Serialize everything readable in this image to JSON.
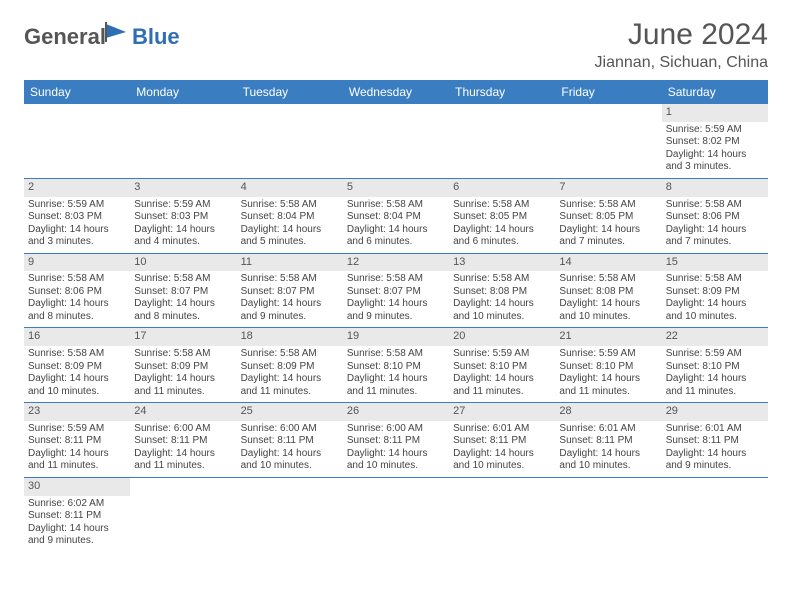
{
  "logo": {
    "text1": "General",
    "text2": "Blue"
  },
  "title": {
    "month": "June 2024",
    "location": "Jiannan, Sichuan, China"
  },
  "weekdays": [
    "Sunday",
    "Monday",
    "Tuesday",
    "Wednesday",
    "Thursday",
    "Friday",
    "Saturday"
  ],
  "colors": {
    "header_bg": "#3a7ec1",
    "header_text": "#ffffff",
    "border": "#3a7ec1",
    "daynum_bg": "#e9e9e9",
    "text": "#444444",
    "title_text": "#555555",
    "logo_gray": "#555555",
    "logo_blue": "#2f6eb5"
  },
  "days": {
    "1": {
      "sunrise": "5:59 AM",
      "sunset": "8:02 PM",
      "daylight": "14 hours and 3 minutes."
    },
    "2": {
      "sunrise": "5:59 AM",
      "sunset": "8:03 PM",
      "daylight": "14 hours and 3 minutes."
    },
    "3": {
      "sunrise": "5:59 AM",
      "sunset": "8:03 PM",
      "daylight": "14 hours and 4 minutes."
    },
    "4": {
      "sunrise": "5:58 AM",
      "sunset": "8:04 PM",
      "daylight": "14 hours and 5 minutes."
    },
    "5": {
      "sunrise": "5:58 AM",
      "sunset": "8:04 PM",
      "daylight": "14 hours and 6 minutes."
    },
    "6": {
      "sunrise": "5:58 AM",
      "sunset": "8:05 PM",
      "daylight": "14 hours and 6 minutes."
    },
    "7": {
      "sunrise": "5:58 AM",
      "sunset": "8:05 PM",
      "daylight": "14 hours and 7 minutes."
    },
    "8": {
      "sunrise": "5:58 AM",
      "sunset": "8:06 PM",
      "daylight": "14 hours and 7 minutes."
    },
    "9": {
      "sunrise": "5:58 AM",
      "sunset": "8:06 PM",
      "daylight": "14 hours and 8 minutes."
    },
    "10": {
      "sunrise": "5:58 AM",
      "sunset": "8:07 PM",
      "daylight": "14 hours and 8 minutes."
    },
    "11": {
      "sunrise": "5:58 AM",
      "sunset": "8:07 PM",
      "daylight": "14 hours and 9 minutes."
    },
    "12": {
      "sunrise": "5:58 AM",
      "sunset": "8:07 PM",
      "daylight": "14 hours and 9 minutes."
    },
    "13": {
      "sunrise": "5:58 AM",
      "sunset": "8:08 PM",
      "daylight": "14 hours and 10 minutes."
    },
    "14": {
      "sunrise": "5:58 AM",
      "sunset": "8:08 PM",
      "daylight": "14 hours and 10 minutes."
    },
    "15": {
      "sunrise": "5:58 AM",
      "sunset": "8:09 PM",
      "daylight": "14 hours and 10 minutes."
    },
    "16": {
      "sunrise": "5:58 AM",
      "sunset": "8:09 PM",
      "daylight": "14 hours and 10 minutes."
    },
    "17": {
      "sunrise": "5:58 AM",
      "sunset": "8:09 PM",
      "daylight": "14 hours and 11 minutes."
    },
    "18": {
      "sunrise": "5:58 AM",
      "sunset": "8:09 PM",
      "daylight": "14 hours and 11 minutes."
    },
    "19": {
      "sunrise": "5:58 AM",
      "sunset": "8:10 PM",
      "daylight": "14 hours and 11 minutes."
    },
    "20": {
      "sunrise": "5:59 AM",
      "sunset": "8:10 PM",
      "daylight": "14 hours and 11 minutes."
    },
    "21": {
      "sunrise": "5:59 AM",
      "sunset": "8:10 PM",
      "daylight": "14 hours and 11 minutes."
    },
    "22": {
      "sunrise": "5:59 AM",
      "sunset": "8:10 PM",
      "daylight": "14 hours and 11 minutes."
    },
    "23": {
      "sunrise": "5:59 AM",
      "sunset": "8:11 PM",
      "daylight": "14 hours and 11 minutes."
    },
    "24": {
      "sunrise": "6:00 AM",
      "sunset": "8:11 PM",
      "daylight": "14 hours and 11 minutes."
    },
    "25": {
      "sunrise": "6:00 AM",
      "sunset": "8:11 PM",
      "daylight": "14 hours and 10 minutes."
    },
    "26": {
      "sunrise": "6:00 AM",
      "sunset": "8:11 PM",
      "daylight": "14 hours and 10 minutes."
    },
    "27": {
      "sunrise": "6:01 AM",
      "sunset": "8:11 PM",
      "daylight": "14 hours and 10 minutes."
    },
    "28": {
      "sunrise": "6:01 AM",
      "sunset": "8:11 PM",
      "daylight": "14 hours and 10 minutes."
    },
    "29": {
      "sunrise": "6:01 AM",
      "sunset": "8:11 PM",
      "daylight": "14 hours and 9 minutes."
    },
    "30": {
      "sunrise": "6:02 AM",
      "sunset": "8:11 PM",
      "daylight": "14 hours and 9 minutes."
    }
  },
  "labels": {
    "sunrise": "Sunrise: ",
    "sunset": "Sunset: ",
    "daylight": "Daylight: "
  },
  "layout": {
    "first_weekday_index": 6,
    "num_days": 30,
    "cell_fontsize": 10,
    "header_fontsize": 12
  }
}
